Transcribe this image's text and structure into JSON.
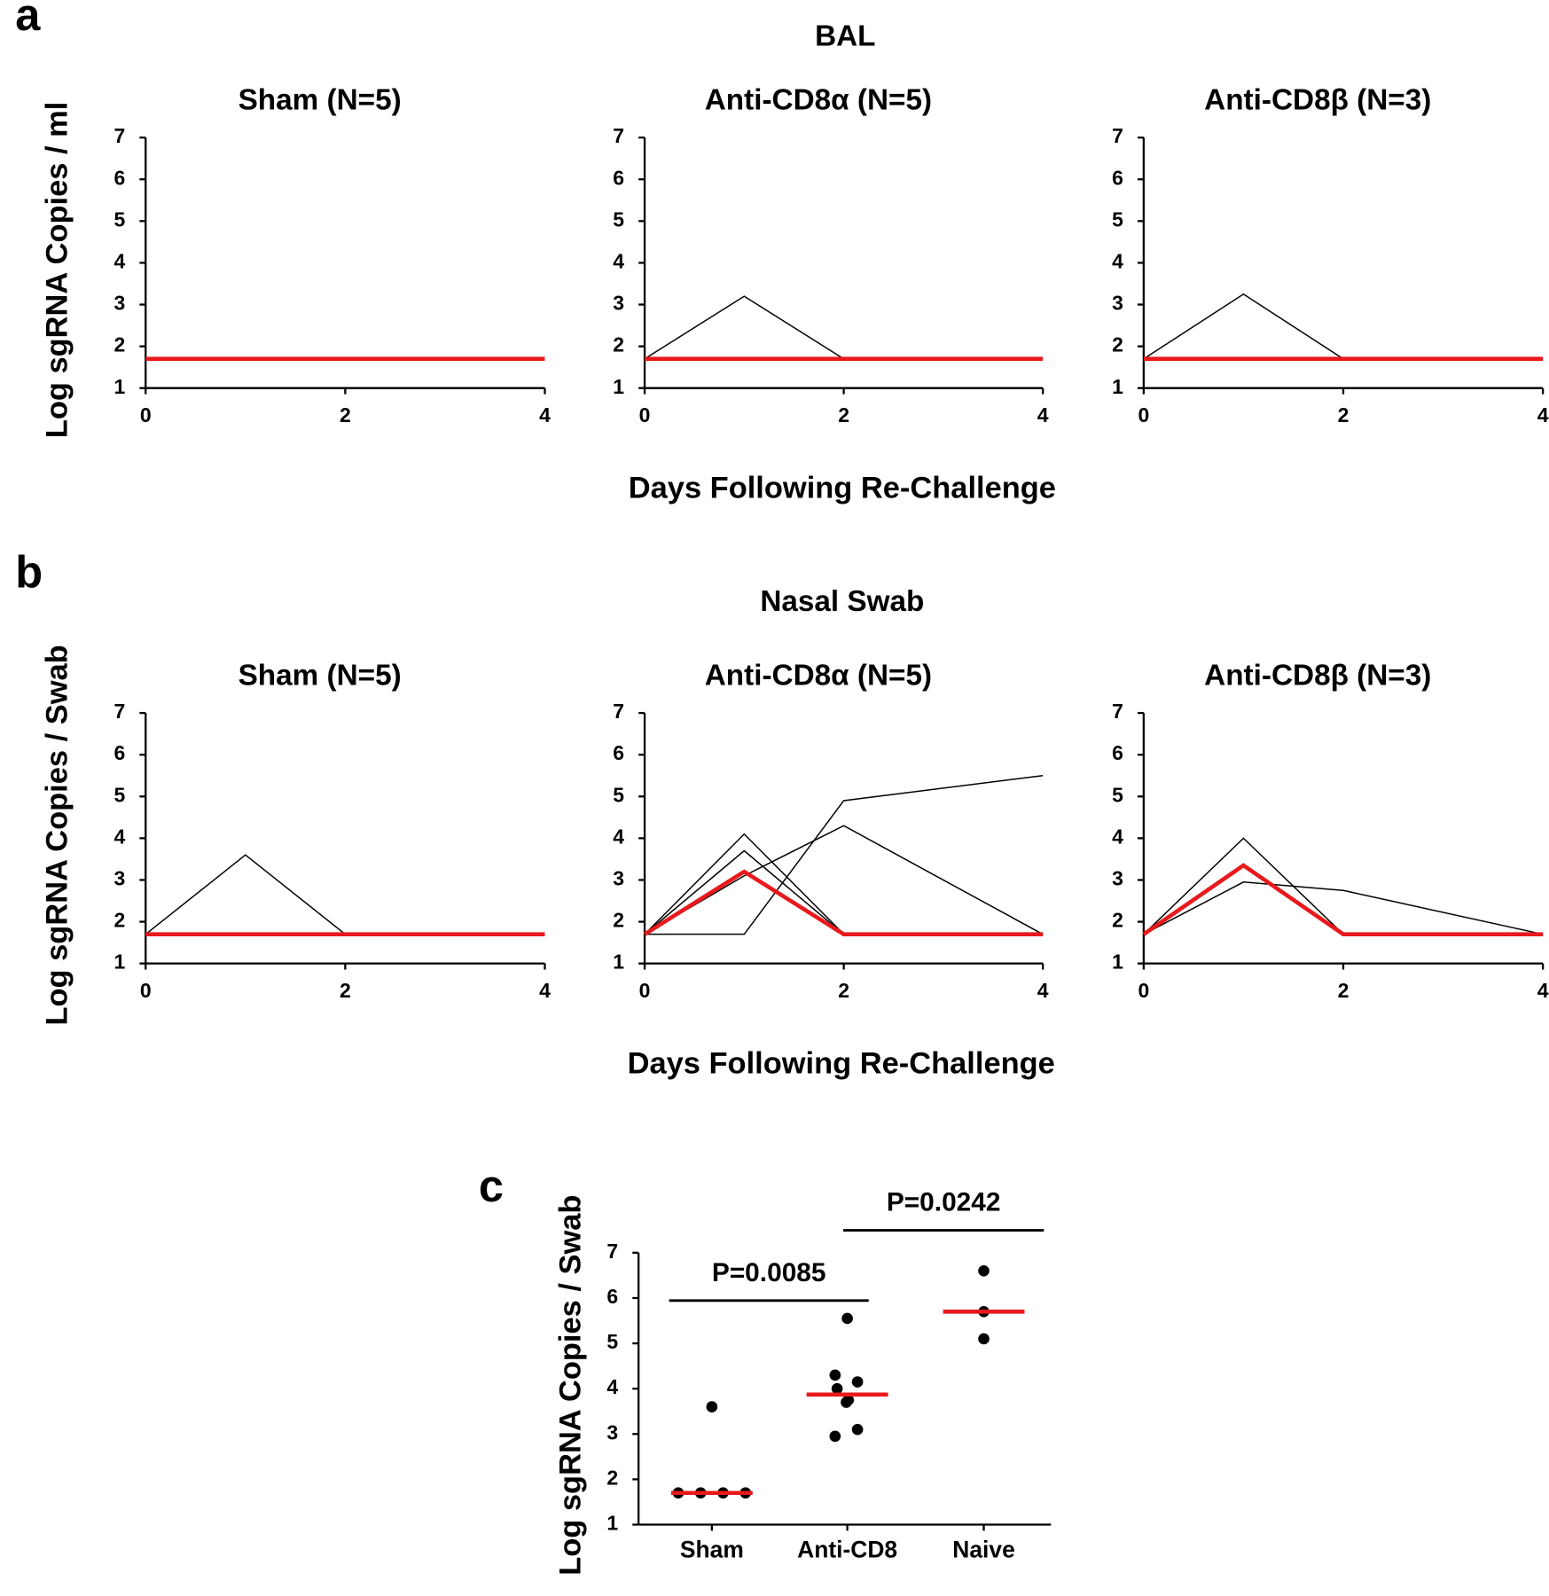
{
  "sections": [
    {
      "letter": "a",
      "title": "BAL",
      "ylabel": "Log sgRNA Copies / ml",
      "xlabel": "Days Following Re-Challenge"
    },
    {
      "letter": "b",
      "title": "Nasal Swab",
      "ylabel": "Log sgRNA Copies / Swab",
      "xlabel": "Days Following Re-Challenge"
    },
    {
      "letter": "c"
    }
  ],
  "chart_data": [
    {
      "type": "line",
      "title": "Sham (N=5)",
      "x": [
        0,
        1,
        2,
        4
      ],
      "xlim": [
        0,
        4
      ],
      "xticks": [
        0,
        2,
        4
      ],
      "ylim": [
        1,
        7
      ],
      "yticks": [
        1,
        2,
        3,
        4,
        5,
        6,
        7
      ],
      "series": [
        {
          "color": "#e8191c",
          "values": [
            1.7,
            1.7,
            1.7,
            1.7
          ]
        }
      ]
    },
    {
      "type": "line",
      "title": "Anti-CD8α (N=5)",
      "x": [
        0,
        1,
        2,
        4
      ],
      "xlim": [
        0,
        4
      ],
      "xticks": [
        0,
        2,
        4
      ],
      "ylim": [
        1,
        7
      ],
      "yticks": [
        1,
        2,
        3,
        4,
        5,
        6,
        7
      ],
      "series": [
        {
          "color": "#000000",
          "values": [
            1.7,
            3.2,
            1.7,
            1.7
          ]
        },
        {
          "color": "#e8191c",
          "values": [
            1.7,
            1.7,
            1.7,
            1.7
          ]
        }
      ]
    },
    {
      "type": "line",
      "title": "Anti-CD8β (N=3)",
      "x": [
        0,
        1,
        2,
        4
      ],
      "xlim": [
        0,
        4
      ],
      "xticks": [
        0,
        2,
        4
      ],
      "ylim": [
        1,
        7
      ],
      "yticks": [
        1,
        2,
        3,
        4,
        5,
        6,
        7
      ],
      "series": [
        {
          "color": "#000000",
          "values": [
            1.7,
            3.25,
            1.7,
            1.7
          ]
        },
        {
          "color": "#e8191c",
          "values": [
            1.7,
            1.7,
            1.7,
            1.7
          ]
        }
      ]
    },
    {
      "type": "line",
      "title": "Sham (N=5)",
      "x": [
        0,
        1,
        2,
        4
      ],
      "xlim": [
        0,
        4
      ],
      "xticks": [
        0,
        2,
        4
      ],
      "ylim": [
        1,
        7
      ],
      "yticks": [
        1,
        2,
        3,
        4,
        5,
        6,
        7
      ],
      "series": [
        {
          "color": "#000000",
          "values": [
            1.7,
            3.6,
            1.7,
            1.7
          ]
        },
        {
          "color": "#e8191c",
          "values": [
            1.7,
            1.7,
            1.7,
            1.7
          ]
        }
      ]
    },
    {
      "type": "line",
      "title": "Anti-CD8α (N=5)",
      "x": [
        0,
        1,
        2,
        4
      ],
      "xlim": [
        0,
        4
      ],
      "xticks": [
        0,
        2,
        4
      ],
      "ylim": [
        1,
        7
      ],
      "yticks": [
        1,
        2,
        3,
        4,
        5,
        6,
        7
      ],
      "series": [
        {
          "color": "#000000",
          "values": [
            1.7,
            4.1,
            1.7,
            1.7
          ]
        },
        {
          "color": "#000000",
          "values": [
            1.7,
            3.7,
            1.7,
            1.7
          ]
        },
        {
          "color": "#000000",
          "values": [
            1.7,
            1.7,
            4.9,
            5.5
          ]
        },
        {
          "color": "#000000",
          "values": [
            1.7,
            3.1,
            4.3,
            1.7
          ]
        },
        {
          "color": "#e8191c",
          "values": [
            1.7,
            3.2,
            1.7,
            1.7
          ]
        }
      ]
    },
    {
      "type": "line",
      "title": "Anti-CD8β (N=3)",
      "x": [
        0,
        1,
        2,
        4
      ],
      "xlim": [
        0,
        4
      ],
      "xticks": [
        0,
        2,
        4
      ],
      "ylim": [
        1,
        7
      ],
      "yticks": [
        1,
        2,
        3,
        4,
        5,
        6,
        7
      ],
      "series": [
        {
          "color": "#000000",
          "values": [
            1.7,
            4.0,
            1.7,
            1.7
          ]
        },
        {
          "color": "#000000",
          "values": [
            1.7,
            2.95,
            2.75,
            1.7
          ]
        },
        {
          "color": "#e8191c",
          "values": [
            1.7,
            3.35,
            1.7,
            1.7
          ]
        }
      ]
    },
    {
      "type": "strip",
      "ylabel": "Log sgRNA Copies / Swab",
      "categories": [
        "Sham",
        "Anti-CD8",
        "Naive"
      ],
      "values": [
        [
          1.7,
          1.7,
          1.7,
          1.7,
          3.6
        ],
        [
          5.55,
          4.3,
          4.15,
          4.0,
          3.75,
          3.7,
          3.1,
          2.95
        ],
        [
          6.6,
          5.7,
          5.1
        ]
      ],
      "color": "#000000",
      "medians": [
        1.7,
        3.87,
        5.7
      ],
      "median_color": "#e8191c",
      "annotations": [
        "P=0.0085",
        "P=0.0242"
      ],
      "ylim": [
        1,
        7
      ],
      "yticks": [
        1,
        2,
        3,
        4,
        5,
        6,
        7
      ]
    }
  ]
}
